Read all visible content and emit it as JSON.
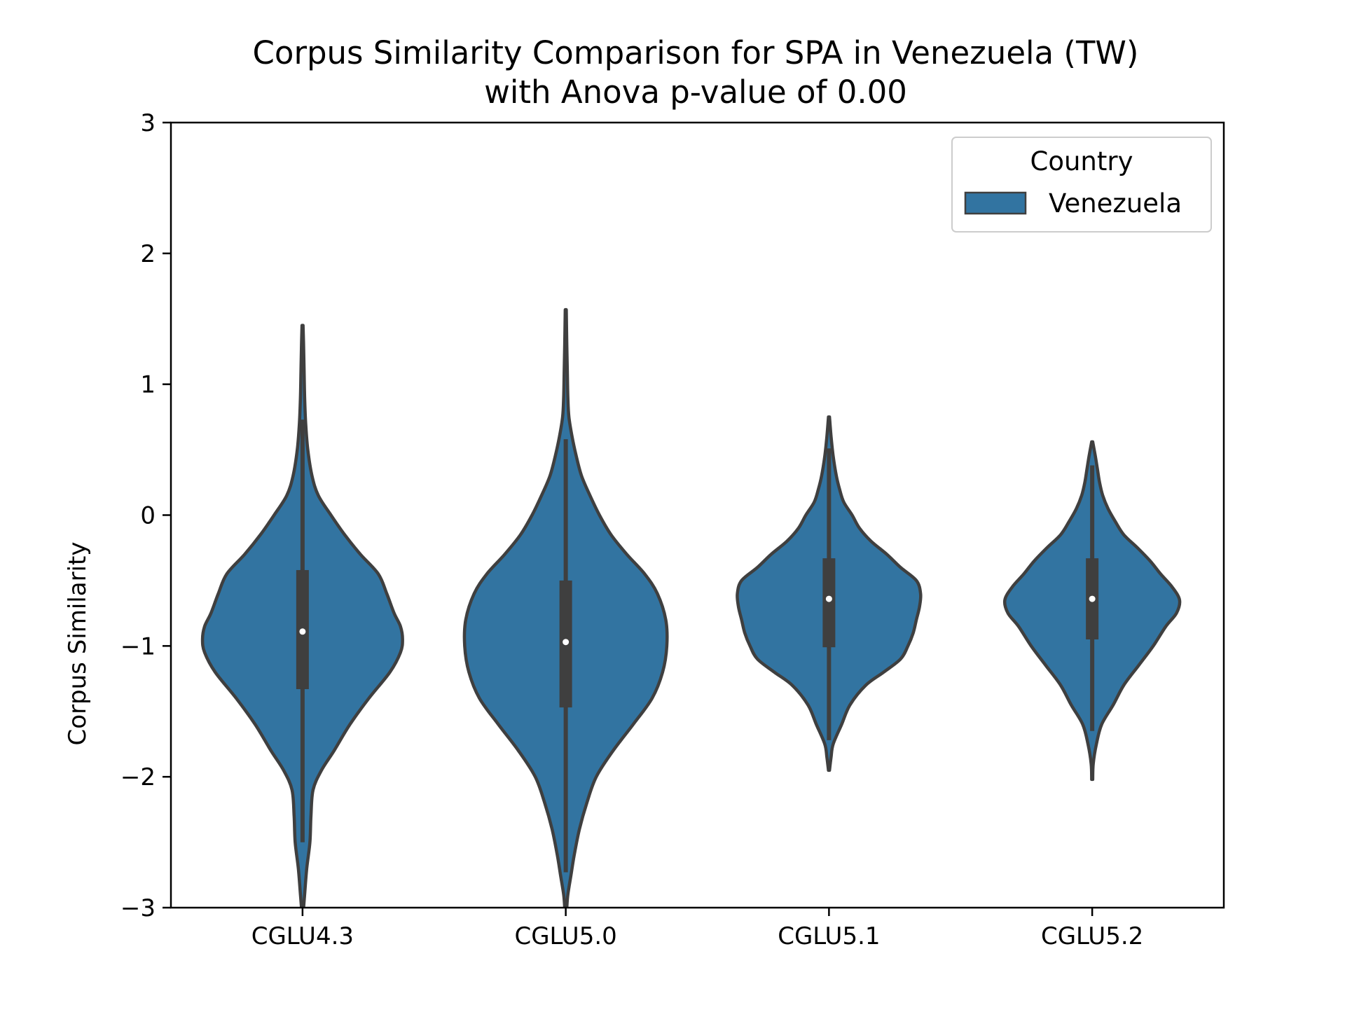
{
  "chart_data": {
    "type": "violin",
    "title_line1": "Corpus Similarity Comparison for SPA in Venezuela (TW)",
    "title_line2": "with Anova p-value of 0.00",
    "xlabel": "",
    "ylabel": "Corpus Similarity",
    "ylim": [
      -3,
      3
    ],
    "yticks": [
      3,
      2,
      1,
      0,
      -1,
      -2,
      -3
    ],
    "ytick_labels": [
      "3",
      "2",
      "1",
      "0",
      "−1",
      "−2",
      "−3"
    ],
    "categories": [
      "CGLU4.3",
      "CGLU5.0",
      "CGLU5.1",
      "CGLU5.2"
    ],
    "legend": {
      "title": "Country",
      "entries": [
        "Venezuela"
      ],
      "position": "top-right"
    },
    "grid": false,
    "colors": {
      "fill": "#3274a1",
      "edge": "#3f3f3f",
      "box": "#3f3f3f",
      "median": "#ffffff"
    },
    "series": [
      {
        "category": "CGLU4.3",
        "median": -0.89,
        "q1": -1.33,
        "q3": -0.42,
        "whisker_low": -2.5,
        "whisker_high": 0.73,
        "density": [
          [
            -3.0,
            0.01
          ],
          [
            -2.9,
            0.02
          ],
          [
            -2.7,
            0.04
          ],
          [
            -2.5,
            0.07
          ],
          [
            -2.3,
            0.08
          ],
          [
            -2.1,
            0.1
          ],
          [
            -1.95,
            0.18
          ],
          [
            -1.8,
            0.3
          ],
          [
            -1.6,
            0.45
          ],
          [
            -1.4,
            0.63
          ],
          [
            -1.2,
            0.83
          ],
          [
            -1.05,
            0.93
          ],
          [
            -0.95,
            0.95
          ],
          [
            -0.85,
            0.93
          ],
          [
            -0.75,
            0.87
          ],
          [
            -0.6,
            0.8
          ],
          [
            -0.45,
            0.72
          ],
          [
            -0.3,
            0.55
          ],
          [
            -0.15,
            0.4
          ],
          [
            0.0,
            0.27
          ],
          [
            0.15,
            0.15
          ],
          [
            0.3,
            0.09
          ],
          [
            0.5,
            0.05
          ],
          [
            0.7,
            0.03
          ],
          [
            0.9,
            0.02
          ],
          [
            1.1,
            0.015
          ],
          [
            1.3,
            0.01
          ],
          [
            1.45,
            0.005
          ]
        ]
      },
      {
        "category": "CGLU5.0",
        "median": -0.97,
        "q1": -1.47,
        "q3": -0.5,
        "whisker_low": -2.73,
        "whisker_high": 0.58,
        "density": [
          [
            -3.0,
            0.01
          ],
          [
            -2.9,
            0.02
          ],
          [
            -2.75,
            0.05
          ],
          [
            -2.6,
            0.08
          ],
          [
            -2.4,
            0.13
          ],
          [
            -2.2,
            0.2
          ],
          [
            -2.0,
            0.29
          ],
          [
            -1.8,
            0.45
          ],
          [
            -1.6,
            0.64
          ],
          [
            -1.4,
            0.82
          ],
          [
            -1.2,
            0.92
          ],
          [
            -1.0,
            0.96
          ],
          [
            -0.8,
            0.95
          ],
          [
            -0.6,
            0.87
          ],
          [
            -0.45,
            0.75
          ],
          [
            -0.3,
            0.58
          ],
          [
            -0.15,
            0.43
          ],
          [
            0.0,
            0.32
          ],
          [
            0.15,
            0.23
          ],
          [
            0.3,
            0.15
          ],
          [
            0.45,
            0.1
          ],
          [
            0.6,
            0.06
          ],
          [
            0.75,
            0.03
          ],
          [
            0.9,
            0.02
          ],
          [
            1.1,
            0.015
          ],
          [
            1.3,
            0.01
          ],
          [
            1.57,
            0.005
          ]
        ]
      },
      {
        "category": "CGLU5.1",
        "median": -0.64,
        "q1": -1.01,
        "q3": -0.33,
        "whisker_low": -1.72,
        "whisker_high": 0.51,
        "density": [
          [
            -1.95,
            0.005
          ],
          [
            -1.85,
            0.02
          ],
          [
            -1.75,
            0.04
          ],
          [
            -1.6,
            0.12
          ],
          [
            -1.45,
            0.2
          ],
          [
            -1.3,
            0.35
          ],
          [
            -1.2,
            0.52
          ],
          [
            -1.1,
            0.68
          ],
          [
            -1.0,
            0.75
          ],
          [
            -0.9,
            0.8
          ],
          [
            -0.8,
            0.83
          ],
          [
            -0.7,
            0.86
          ],
          [
            -0.6,
            0.87
          ],
          [
            -0.5,
            0.83
          ],
          [
            -0.4,
            0.68
          ],
          [
            -0.3,
            0.55
          ],
          [
            -0.2,
            0.4
          ],
          [
            -0.1,
            0.29
          ],
          [
            0.0,
            0.22
          ],
          [
            0.1,
            0.14
          ],
          [
            0.2,
            0.1
          ],
          [
            0.3,
            0.07
          ],
          [
            0.45,
            0.04
          ],
          [
            0.6,
            0.02
          ],
          [
            0.75,
            0.005
          ]
        ]
      },
      {
        "category": "CGLU5.2",
        "median": -0.64,
        "q1": -0.95,
        "q3": -0.33,
        "whisker_low": -1.65,
        "whisker_high": 0.38,
        "density": [
          [
            -2.02,
            0.005
          ],
          [
            -1.9,
            0.01
          ],
          [
            -1.75,
            0.04
          ],
          [
            -1.6,
            0.09
          ],
          [
            -1.45,
            0.2
          ],
          [
            -1.3,
            0.3
          ],
          [
            -1.15,
            0.44
          ],
          [
            -1.0,
            0.58
          ],
          [
            -0.85,
            0.7
          ],
          [
            -0.75,
            0.8
          ],
          [
            -0.65,
            0.83
          ],
          [
            -0.55,
            0.76
          ],
          [
            -0.45,
            0.65
          ],
          [
            -0.35,
            0.55
          ],
          [
            -0.25,
            0.43
          ],
          [
            -0.15,
            0.3
          ],
          [
            -0.05,
            0.22
          ],
          [
            0.05,
            0.15
          ],
          [
            0.15,
            0.1
          ],
          [
            0.25,
            0.07
          ],
          [
            0.35,
            0.05
          ],
          [
            0.45,
            0.03
          ],
          [
            0.56,
            0.005
          ]
        ]
      }
    ]
  }
}
